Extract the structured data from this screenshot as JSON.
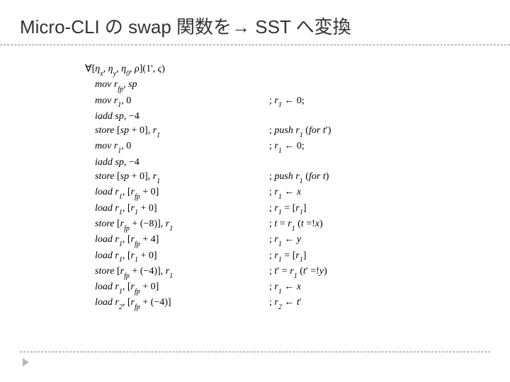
{
  "title": "Micro-CLI の swap 関数を→ SST へ変換",
  "listing": {
    "header": "∀[η_x, η_y, η_0, ρ](1', ς)",
    "rows": [
      {
        "instr": "mov r_{fp}, sp",
        "comment": ""
      },
      {
        "instr": "mov r_1, 0",
        "comment": "; r_1 ← 0;"
      },
      {
        "instr": "iadd sp, −4",
        "comment": ""
      },
      {
        "instr": "store [sp + 0], r_1",
        "comment": "; push r_1 (for t′)"
      },
      {
        "instr": "mov r_1, 0",
        "comment": "; r_1 ← 0;"
      },
      {
        "instr": "iadd sp, −4",
        "comment": ""
      },
      {
        "instr": "store [sp + 0], r_1",
        "comment": "; push r_1 (for t)"
      },
      {
        "instr": "load r_1, [r_{fp} + 0]",
        "comment": "; r_1 ← x"
      },
      {
        "instr": "load r_1, [r_1 + 0]",
        "comment": "; r_1 = [r_1]"
      },
      {
        "instr": "store [r_{fp} + (−8)], r_1",
        "comment": "; t = r_1 (t =!x)"
      },
      {
        "instr": "load r_1, [r_{fp} + 4]",
        "comment": "; r_1 ← y"
      },
      {
        "instr": "load r_1, [r_1 + 0]",
        "comment": "; r_1 = [r_1]"
      },
      {
        "instr": "store [r_{fp} + (−4)], r_1",
        "comment": "; t′ = r_1 (t′ =!y)"
      },
      {
        "instr": "load r_1, [r_{fp} + 0]",
        "comment": "; r_1 ← x"
      },
      {
        "instr": "load r_2, [r_{fp} + (−4)]",
        "comment": "; r_2 ← t′"
      }
    ]
  },
  "style": {
    "bg": "#ffffff",
    "title_color": "#333333",
    "title_fontsize": 26,
    "body_fontsize": 14,
    "line_height": 1.45,
    "rule_color": "#808080",
    "marker_color": "#b8b8b8"
  }
}
